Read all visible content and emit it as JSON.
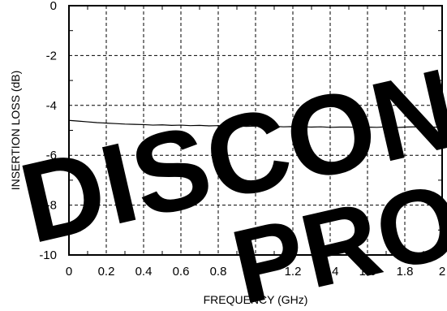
{
  "chart_data": {
    "type": "line",
    "title": "",
    "xlabel": "FREQUENCY (GHz)",
    "ylabel": "INSERTION LOSS (dB)",
    "xlim": [
      0,
      2
    ],
    "ylim": [
      -10,
      0
    ],
    "xticks": [
      0,
      0.2,
      0.4,
      0.6,
      0.8,
      1,
      1.2,
      1.4,
      1.6,
      1.8,
      2
    ],
    "xtick_labels": [
      "0",
      "0.2",
      "0.4",
      "0.6",
      "0.8",
      "1",
      "1.2",
      "1.4",
      "1.6",
      "1.8",
      "2"
    ],
    "yticks": [
      0,
      -2,
      -4,
      -6,
      -8,
      -10
    ],
    "ytick_labels": [
      "0",
      "-2",
      "-4",
      "-6",
      "-8",
      "-10"
    ],
    "grid": true,
    "series": [
      {
        "x": [
          0,
          0.05,
          0.1,
          0.15,
          0.2,
          0.25,
          0.3,
          0.35,
          0.4,
          0.45,
          0.5,
          0.55,
          0.6,
          0.65,
          0.7,
          0.75,
          0.8,
          0.85,
          0.9,
          0.95,
          1.0,
          1.05,
          1.1,
          1.15,
          1.2,
          1.25,
          1.3,
          1.35,
          1.4,
          1.45,
          1.5,
          1.55,
          1.6,
          1.65,
          1.7,
          1.75,
          1.8,
          1.85,
          1.9,
          1.95,
          2.0
        ],
        "y": [
          -4.6,
          -4.63,
          -4.66,
          -4.69,
          -4.71,
          -4.73,
          -4.75,
          -4.76,
          -4.77,
          -4.79,
          -4.78,
          -4.8,
          -4.79,
          -4.81,
          -4.8,
          -4.82,
          -4.81,
          -4.83,
          -4.82,
          -4.84,
          -4.83,
          -4.85,
          -4.84,
          -4.86,
          -4.85,
          -4.86,
          -4.87,
          -4.86,
          -4.88,
          -4.87,
          -4.87,
          -4.88,
          -4.87,
          -4.88,
          -4.86,
          -4.89,
          -4.87,
          -4.86,
          -4.87,
          -4.87,
          -4.88
        ]
      }
    ]
  },
  "watermark": {
    "line1": "DISCON",
    "line2": "PRO"
  }
}
